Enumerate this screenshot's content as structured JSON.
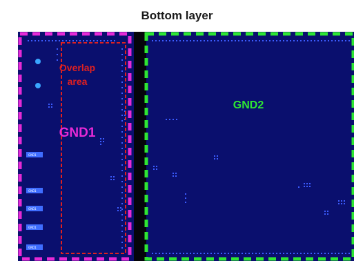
{
  "title": "Bottom layer",
  "regions": {
    "overlap": {
      "line1": "Overlap",
      "line2": "area",
      "color": "#e02020"
    },
    "gnd1": {
      "label": "GND1",
      "color": "#e62ad6"
    },
    "gnd2": {
      "label": "GND2",
      "color": "#2ee633"
    }
  },
  "board": {
    "fill_color": "#0a0f6e",
    "gap_color": "#05050a"
  },
  "pads": [
    {
      "label": "GND1"
    },
    {
      "label": "GND1"
    },
    {
      "label": "GND1"
    },
    {
      "label": "GND1"
    },
    {
      "label": "GND1"
    }
  ],
  "icons": [
    "via-dot-icon",
    "pad-icon"
  ]
}
